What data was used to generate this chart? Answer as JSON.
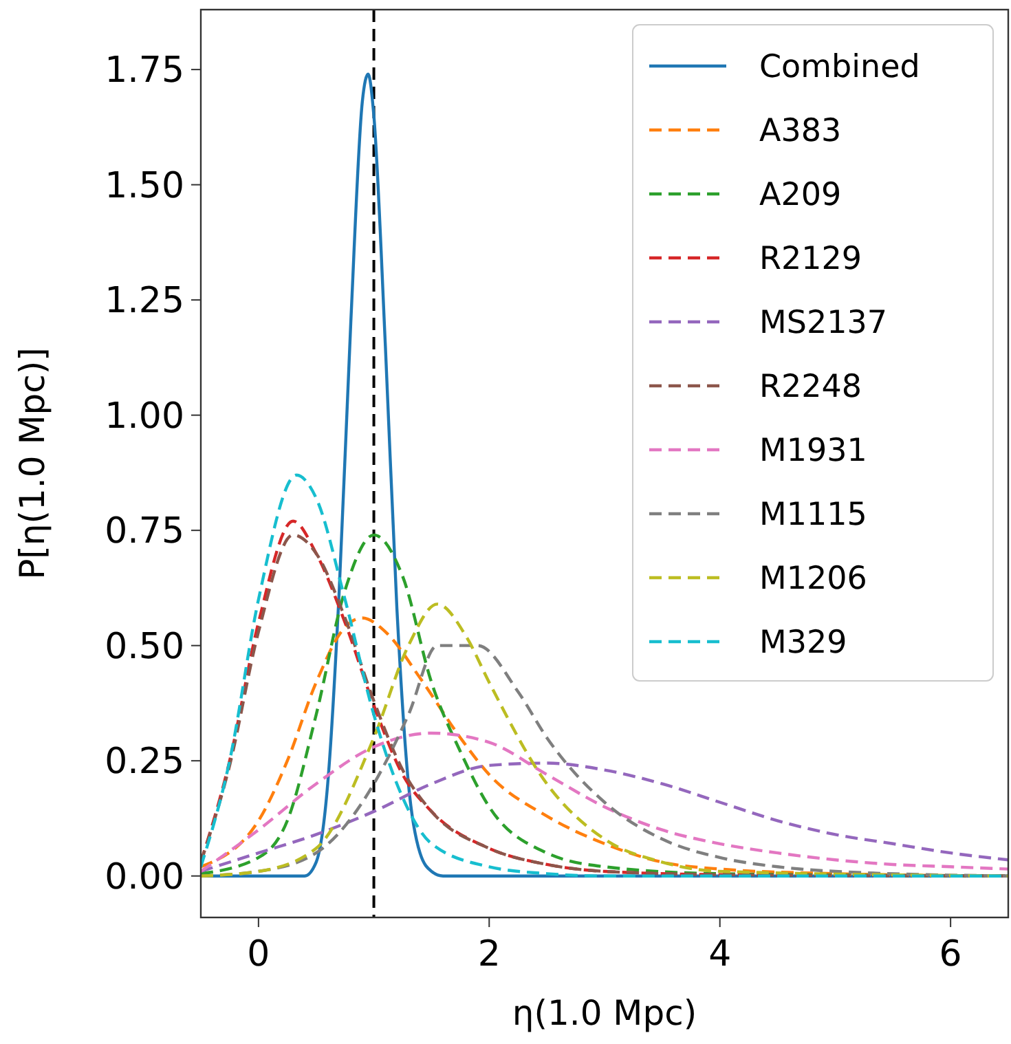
{
  "chart_data": {
    "type": "line",
    "xlabel": "η(1.0 Mpc)",
    "ylabel": "P[η(1.0 Mpc)]",
    "xlim": [
      -0.5,
      6.5
    ],
    "xticks": [
      0,
      2,
      4,
      6
    ],
    "ylim": [
      -0.09,
      1.88
    ],
    "yticks": [
      {
        "value": 0,
        "label": "0.00"
      },
      {
        "value": 0.25,
        "label": "0.25"
      },
      {
        "value": 0.5,
        "label": "0.50"
      },
      {
        "value": 0.75,
        "label": "0.75"
      },
      {
        "value": 1,
        "label": "1.00"
      },
      {
        "value": 1.25,
        "label": "1.25"
      },
      {
        "value": 1.5,
        "label": "1.50"
      },
      {
        "value": 1.75,
        "label": "1.75"
      }
    ],
    "legend": "top right",
    "marker": "none",
    "line_style": "dashed",
    "ref_lines": [
      {
        "axis": "x",
        "value": 1.0,
        "color": "#000000",
        "line_style": "dashed"
      }
    ],
    "series": [
      {
        "name": "Combined",
        "color": "#1f77b4",
        "line_style": "solid",
        "x": [
          -0.5,
          0.4,
          0.5,
          0.6,
          0.7,
          0.8,
          0.9,
          0.95,
          1.0,
          1.1,
          1.2,
          1.3,
          1.4,
          1.5,
          1.6,
          6.5
        ],
        "values": [
          0,
          0,
          0.03,
          0.2,
          0.62,
          1.2,
          1.68,
          1.74,
          1.65,
          1.15,
          0.58,
          0.2,
          0.05,
          0.01,
          0,
          0
        ]
      },
      {
        "name": "A383",
        "color": "#ff7f0e",
        "x": [
          -0.5,
          0,
          0.25,
          0.5,
          0.75,
          0.9,
          1.1,
          1.4,
          1.75,
          2.0,
          2.5,
          3.0,
          3.5,
          4,
          5,
          6.5
        ],
        "values": [
          0.02,
          0.12,
          0.25,
          0.42,
          0.54,
          0.56,
          0.53,
          0.43,
          0.3,
          0.22,
          0.13,
          0.07,
          0.03,
          0.015,
          0.005,
          0
        ]
      },
      {
        "name": "A209",
        "color": "#2ca02c",
        "x": [
          -0.5,
          0,
          0.25,
          0.5,
          0.75,
          1.0,
          1.25,
          1.5,
          1.75,
          2.0,
          2.5,
          3,
          4,
          6.5
        ],
        "values": [
          0.005,
          0.04,
          0.12,
          0.35,
          0.62,
          0.74,
          0.65,
          0.42,
          0.27,
          0.15,
          0.05,
          0.02,
          0.005,
          0
        ]
      },
      {
        "name": "R2129",
        "color": "#d62728",
        "x": [
          -0.5,
          -0.25,
          0,
          0.3,
          0.5,
          0.75,
          1.0,
          1.25,
          1.5,
          2.0,
          2.5,
          3,
          4,
          6.5
        ],
        "values": [
          0.03,
          0.25,
          0.55,
          0.77,
          0.7,
          0.55,
          0.37,
          0.22,
          0.14,
          0.06,
          0.025,
          0.01,
          0.003,
          0
        ]
      },
      {
        "name": "MS2137",
        "color": "#9467bd",
        "x": [
          -0.5,
          0,
          0.5,
          1,
          1.5,
          2,
          2.5,
          3,
          3.5,
          4,
          4.5,
          5,
          5.5,
          6,
          6.5
        ],
        "values": [
          0.01,
          0.05,
          0.09,
          0.14,
          0.2,
          0.24,
          0.245,
          0.23,
          0.2,
          0.16,
          0.12,
          0.09,
          0.07,
          0.05,
          0.035
        ]
      },
      {
        "name": "R2248",
        "color": "#8c564b",
        "x": [
          -0.5,
          -0.25,
          0,
          0.3,
          0.5,
          0.75,
          1.0,
          1.25,
          1.5,
          2.0,
          2.5,
          3,
          4,
          6.5
        ],
        "values": [
          0.03,
          0.24,
          0.53,
          0.74,
          0.7,
          0.56,
          0.38,
          0.23,
          0.14,
          0.06,
          0.025,
          0.01,
          0.003,
          0
        ]
      },
      {
        "name": "M1931",
        "color": "#e377c2",
        "x": [
          -0.5,
          0,
          0.5,
          1,
          1.5,
          2,
          2.5,
          3,
          3.5,
          4,
          4.5,
          5,
          5.5,
          6,
          6.5
        ],
        "values": [
          0.01,
          0.1,
          0.2,
          0.28,
          0.31,
          0.29,
          0.22,
          0.15,
          0.1,
          0.07,
          0.05,
          0.035,
          0.025,
          0.02,
          0.015
        ]
      },
      {
        "name": "M1115",
        "color": "#7f7f7f",
        "x": [
          -0.5,
          0,
          0.5,
          1,
          1.3,
          1.55,
          1.9,
          2.25,
          2.5,
          3,
          3.5,
          4,
          4.5,
          5,
          6.5
        ],
        "values": [
          0,
          0.01,
          0.05,
          0.2,
          0.35,
          0.5,
          0.5,
          0.4,
          0.3,
          0.16,
          0.08,
          0.04,
          0.02,
          0.01,
          0
        ]
      },
      {
        "name": "M1206",
        "color": "#bcbd22",
        "x": [
          -0.5,
          0,
          0.5,
          1,
          1.3,
          1.55,
          1.8,
          2.0,
          2.5,
          3,
          3.5,
          4,
          6.5
        ],
        "values": [
          0,
          0.01,
          0.06,
          0.3,
          0.5,
          0.59,
          0.52,
          0.42,
          0.2,
          0.08,
          0.03,
          0.01,
          0
        ]
      },
      {
        "name": "M329",
        "color": "#17becf",
        "x": [
          -0.5,
          -0.25,
          0,
          0.33,
          0.5,
          0.75,
          1.0,
          1.25,
          1.5,
          2.0,
          2.5,
          3,
          6.5
        ],
        "values": [
          0.02,
          0.25,
          0.6,
          0.87,
          0.82,
          0.6,
          0.35,
          0.17,
          0.07,
          0.02,
          0.005,
          0,
          0
        ]
      }
    ]
  }
}
